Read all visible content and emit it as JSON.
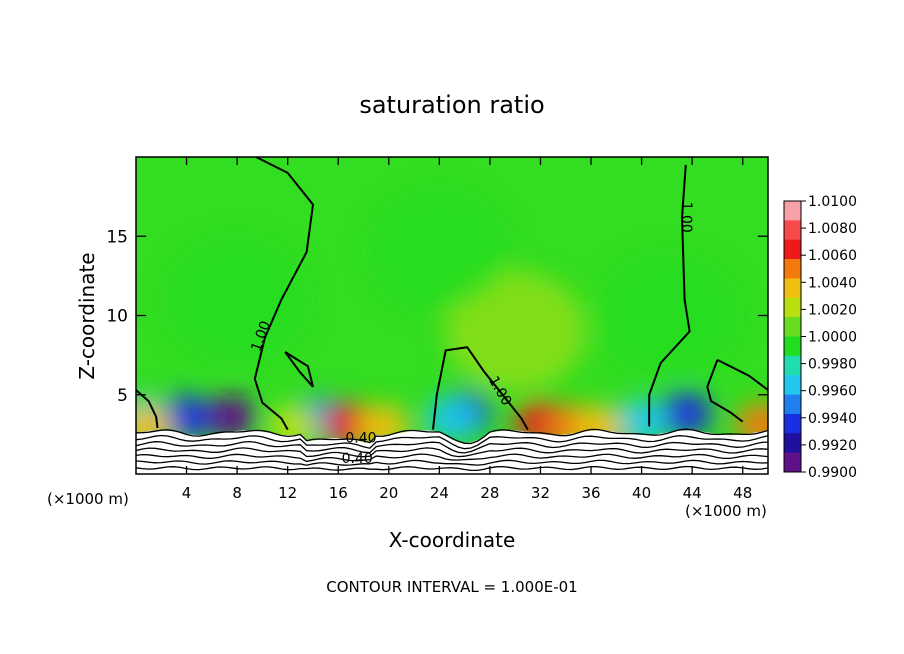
{
  "chart_data": {
    "type": "heatmap",
    "title": "saturation ratio",
    "xlabel": "X-coordinate",
    "ylabel": "Z-coordinate",
    "x_unit": "(×1000 m)",
    "x_unit_right": "(×1000 m)",
    "xlim": [
      0,
      50
    ],
    "ylim": [
      0,
      20
    ],
    "x_ticks": [
      4,
      8,
      12,
      16,
      20,
      24,
      28,
      32,
      36,
      40,
      44,
      48
    ],
    "y_ticks": [
      5,
      10,
      15
    ],
    "footer": "CONTOUR INTERVAL = 1.000E-01",
    "colorbar": {
      "levels": [
        "1.0100",
        "1.0080",
        "1.0060",
        "1.0040",
        "1.0020",
        "1.0000",
        "0.9980",
        "0.9960",
        "0.9940",
        "0.9920",
        "0.9900"
      ],
      "colors": [
        "#f7a0a8",
        "#f84a4a",
        "#ee1a1a",
        "#f47a10",
        "#f0c010",
        "#b8e010",
        "#66dd20",
        "#20dd20",
        "#20ddb0",
        "#20c8ee",
        "#2080f0",
        "#1a30e0",
        "#2010a0",
        "#601088"
      ]
    },
    "contour_labels": [
      {
        "text": "1.00",
        "x": 10.2,
        "z": 8.6
      },
      {
        "text": "1.00",
        "x": 43.2,
        "z": 16.2
      },
      {
        "text": "1.00",
        "x": 28.5,
        "z": 5.1
      },
      {
        "text": "0.40",
        "x": 17.5,
        "z": 0.7
      },
      {
        "text": "0.40",
        "x": 17.8,
        "z": 2.0
      }
    ],
    "data_blobs": [
      {
        "x": 7.5,
        "z": 3.6,
        "value": 0.9905
      },
      {
        "x": 4.0,
        "z": 3.6,
        "value": 0.993
      },
      {
        "x": 0.5,
        "z": 3.5,
        "value": 0.9965
      },
      {
        "x": 14.5,
        "z": 3.4,
        "value": 0.995
      },
      {
        "x": 26.0,
        "z": 3.8,
        "value": 0.9925
      },
      {
        "x": 25.0,
        "z": 3.5,
        "value": 0.996
      },
      {
        "x": 43.5,
        "z": 3.8,
        "value": 0.9935
      },
      {
        "x": 40.0,
        "z": 3.3,
        "value": 0.9965
      },
      {
        "x": 17.0,
        "z": 3.1,
        "value": 1.0065
      },
      {
        "x": 19.5,
        "z": 3.0,
        "value": 1.004
      },
      {
        "x": 32.0,
        "z": 3.2,
        "value": 1.0075
      },
      {
        "x": 34.5,
        "z": 3.0,
        "value": 1.005
      },
      {
        "x": 36.5,
        "z": 2.9,
        "value": 1.004
      },
      {
        "x": 49.5,
        "z": 3.1,
        "value": 1.006
      },
      {
        "x": 0.8,
        "z": 3.0,
        "value": 1.004
      },
      {
        "x": 12.5,
        "z": 3.0,
        "value": 1.003
      },
      {
        "x": 30.0,
        "z": 9.0,
        "value": 1.002
      },
      {
        "x": 8.0,
        "z": 11.0,
        "value": 0.9985
      },
      {
        "x": 24.0,
        "z": 14.0,
        "value": 0.999
      },
      {
        "x": 42.0,
        "z": 10.0,
        "value": 0.9988
      }
    ]
  }
}
